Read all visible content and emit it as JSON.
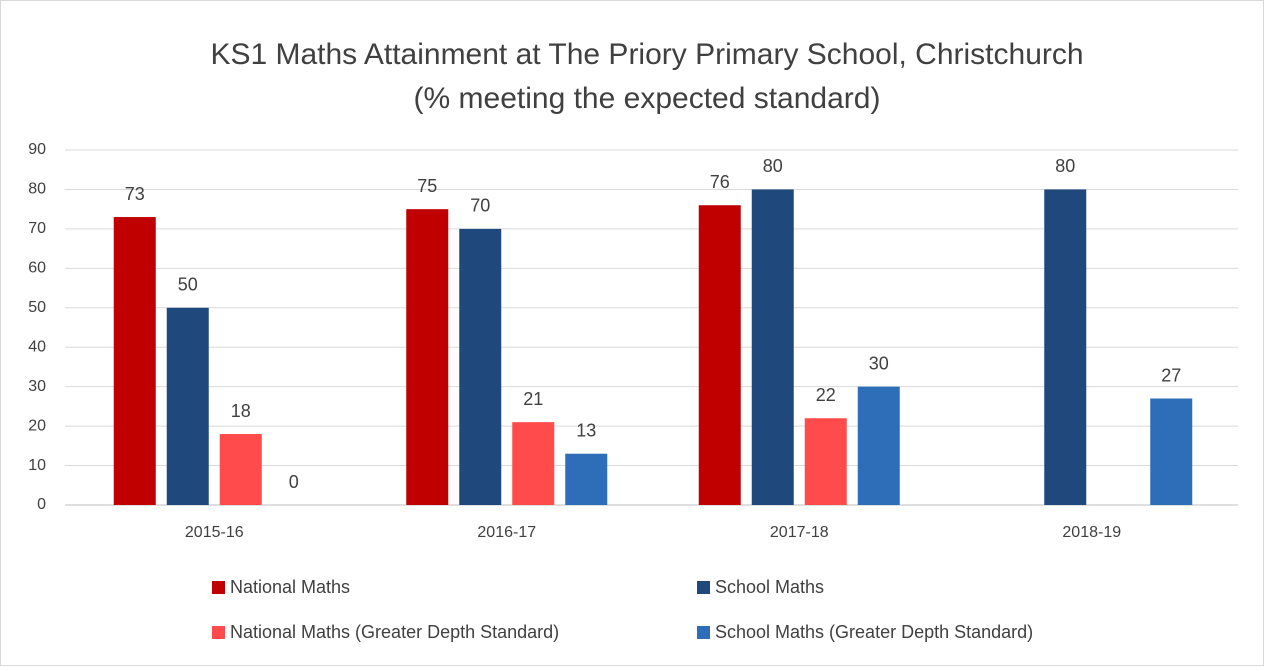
{
  "chart_data": {
    "type": "bar",
    "title": "KS1 Maths Attainment at The Priory Primary School, Christchurch",
    "subtitle": "(% meeting the expected standard)",
    "categories": [
      "2015-16",
      "2016-17",
      "2017-18",
      "2018-19"
    ],
    "series": [
      {
        "name": "National Maths",
        "color": "#c00000",
        "values": [
          73,
          75,
          76,
          null
        ]
      },
      {
        "name": "School Maths",
        "color": "#1f497d",
        "values": [
          50,
          70,
          80,
          80
        ]
      },
      {
        "name": "National Maths (Greater Depth Standard)",
        "color": "#ff4b4b",
        "values": [
          18,
          21,
          22,
          null
        ]
      },
      {
        "name": "School Maths (Greater Depth Standard)",
        "color": "#2e6db8",
        "values": [
          0,
          13,
          30,
          27
        ]
      }
    ],
    "ylim": [
      0,
      90
    ],
    "yticks": [
      0,
      10,
      20,
      30,
      40,
      50,
      60,
      70,
      80,
      90
    ],
    "grid": true,
    "legend": "bottom"
  }
}
